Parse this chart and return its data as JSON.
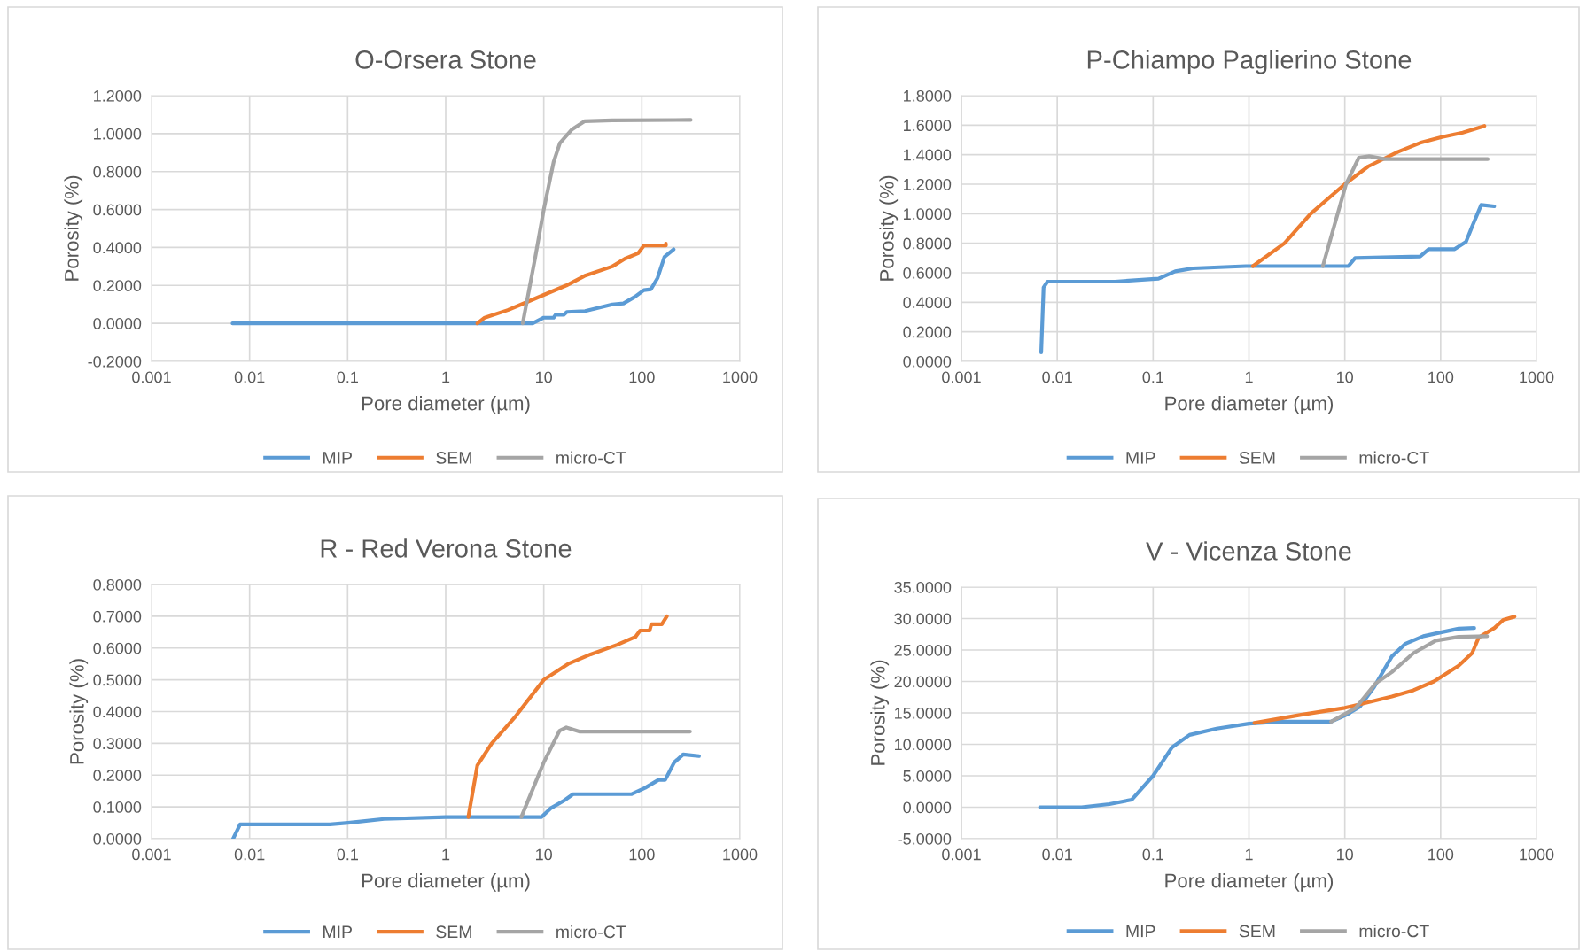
{
  "chart_data": [
    {
      "type": "line",
      "title": "O-Orsera Stone",
      "xlabel": "Pore diameter (µm)",
      "ylabel": "Porosity (%)",
      "log": "x",
      "grid": true,
      "legend": "bottom",
      "line_style": "solid",
      "marker": "none",
      "xlim": [
        0.001,
        1000
      ],
      "xticks": [
        0.001,
        0.01,
        0.1,
        1,
        10,
        100,
        1000
      ],
      "ylim": [
        -0.2,
        1.2
      ],
      "yticks": [
        {
          "value": -0.2,
          "label": "-0.2000"
        },
        {
          "value": 0,
          "label": "0.0000"
        },
        {
          "value": 0.2,
          "label": "0.2000"
        },
        {
          "value": 0.4,
          "label": "0.4000"
        },
        {
          "value": 0.6,
          "label": "0.6000"
        },
        {
          "value": 0.8,
          "label": "0.8000"
        },
        {
          "value": 1.0,
          "label": "1.0000"
        },
        {
          "value": 1.2,
          "label": "1.2000"
        }
      ],
      "series": [
        {
          "name": "MIP",
          "color": "#5b9bd5",
          "x": [
            0.0067,
            1,
            7.7,
            10,
            12.6,
            13.2,
            16,
            17.2,
            26.4,
            50,
            65,
            85,
            105,
            124,
            145,
            170,
            211
          ],
          "values": [
            0,
            0,
            0,
            0.03,
            0.03,
            0.045,
            0.045,
            0.06,
            0.065,
            0.1,
            0.105,
            0.14,
            0.175,
            0.18,
            0.24,
            0.35,
            0.39
          ]
        },
        {
          "name": "SEM",
          "color": "#ed7d31",
          "x": [
            2.1,
            2.5,
            4.3,
            5.9,
            10,
            17,
            26,
            50,
            67,
            92,
            105,
            176,
            176
          ],
          "values": [
            0,
            0.03,
            0.07,
            0.1,
            0.15,
            0.2,
            0.25,
            0.3,
            0.34,
            0.37,
            0.41,
            0.41,
            0.42
          ]
        },
        {
          "name": "micro-CT",
          "color": "#a5a5a5",
          "x": [
            6.1,
            8.2,
            10,
            12.6,
            14.6,
            19.2,
            26,
            50,
            315
          ],
          "values": [
            0,
            0.35,
            0.6,
            0.85,
            0.95,
            1.02,
            1.065,
            1.07,
            1.072
          ]
        }
      ]
    },
    {
      "type": "line",
      "title": "P-Chiampo Paglierino Stone",
      "xlabel": "Pore diameter (µm)",
      "ylabel": "Porosity (%)",
      "log": "x",
      "grid": true,
      "legend": "bottom",
      "line_style": "solid",
      "marker": "none",
      "xlim": [
        0.001,
        1000
      ],
      "xticks": [
        0.001,
        0.01,
        0.1,
        1,
        10,
        100,
        1000
      ],
      "ylim": [
        0,
        1.8
      ],
      "yticks": [
        {
          "value": 0,
          "label": "0.0000"
        },
        {
          "value": 0.2,
          "label": "0.2000"
        },
        {
          "value": 0.4,
          "label": "0.4000"
        },
        {
          "value": 0.6,
          "label": "0.6000"
        },
        {
          "value": 0.8,
          "label": "0.8000"
        },
        {
          "value": 1.0,
          "label": "1.0000"
        },
        {
          "value": 1.2,
          "label": "1.2000"
        },
        {
          "value": 1.4,
          "label": "1.4000"
        },
        {
          "value": 1.6,
          "label": "1.6000"
        },
        {
          "value": 1.8,
          "label": "1.8000"
        }
      ],
      "series": [
        {
          "name": "MIP",
          "color": "#5b9bd5",
          "x": [
            0.0068,
            0.0072,
            0.0079,
            0.04,
            0.114,
            0.17,
            0.26,
            0.93,
            10.9,
            12.8,
            61,
            75,
            140,
            184,
            215,
            265,
            362
          ],
          "values": [
            0.06,
            0.5,
            0.54,
            0.54,
            0.56,
            0.61,
            0.63,
            0.645,
            0.645,
            0.7,
            0.71,
            0.76,
            0.76,
            0.81,
            0.92,
            1.06,
            1.05
          ]
        },
        {
          "name": "SEM",
          "color": "#ed7d31",
          "x": [
            1.1,
            2.35,
            4.4,
            10,
            17.5,
            36,
            61,
            103,
            170,
            286
          ],
          "values": [
            0.645,
            0.8,
            1.0,
            1.2,
            1.32,
            1.42,
            1.48,
            1.52,
            1.55,
            1.595
          ]
        },
        {
          "name": "micro-CT",
          "color": "#a5a5a5",
          "x": [
            5.9,
            10.3,
            14,
            18,
            26,
            310
          ],
          "values": [
            0.645,
            1.2,
            1.38,
            1.39,
            1.37,
            1.37
          ]
        }
      ]
    },
    {
      "type": "line",
      "title": "R - Red Verona Stone",
      "xlabel": "Pore diameter (µm)",
      "ylabel": "Porosity (%)",
      "log": "x",
      "grid": true,
      "legend": "bottom",
      "line_style": "solid",
      "marker": "none",
      "xlim": [
        0.001,
        1000
      ],
      "xticks": [
        0.001,
        0.01,
        0.1,
        1,
        10,
        100,
        1000
      ],
      "ylim": [
        0,
        0.8
      ],
      "yticks": [
        {
          "value": 0,
          "label": "0.0000"
        },
        {
          "value": 0.1,
          "label": "0.1000"
        },
        {
          "value": 0.2,
          "label": "0.2000"
        },
        {
          "value": 0.3,
          "label": "0.3000"
        },
        {
          "value": 0.4,
          "label": "0.4000"
        },
        {
          "value": 0.5,
          "label": "0.5000"
        },
        {
          "value": 0.6,
          "label": "0.6000"
        },
        {
          "value": 0.7,
          "label": "0.7000"
        },
        {
          "value": 0.8,
          "label": "0.8000"
        }
      ],
      "series": [
        {
          "name": "MIP",
          "color": "#5b9bd5",
          "x": [
            0.0068,
            0.008,
            0.066,
            0.101,
            0.235,
            1,
            9.5,
            11.7,
            16.1,
            19.9,
            78,
            108,
            148,
            173,
            214,
            264,
            383
          ],
          "values": [
            0,
            0.045,
            0.045,
            0.05,
            0.062,
            0.068,
            0.068,
            0.095,
            0.12,
            0.14,
            0.14,
            0.16,
            0.185,
            0.185,
            0.24,
            0.265,
            0.26
          ]
        },
        {
          "name": "SEM",
          "color": "#ed7d31",
          "x": [
            1.7,
            2.1,
            2.95,
            5,
            10,
            17.7,
            30,
            56,
            86,
            96,
            120,
            125,
            160,
            180
          ],
          "values": [
            0.068,
            0.23,
            0.3,
            0.38,
            0.5,
            0.55,
            0.58,
            0.61,
            0.635,
            0.655,
            0.655,
            0.675,
            0.675,
            0.7
          ]
        },
        {
          "name": "micro-CT",
          "color": "#a5a5a5",
          "x": [
            5.9,
            10,
            14.5,
            17,
            23,
            310
          ],
          "values": [
            0.068,
            0.24,
            0.34,
            0.35,
            0.337,
            0.337
          ]
        }
      ]
    },
    {
      "type": "line",
      "title": "V - Vicenza Stone",
      "xlabel": "Pore diameter (µm)",
      "ylabel": "Porosity (%)",
      "log": "x",
      "grid": true,
      "legend": "bottom",
      "line_style": "solid",
      "marker": "none",
      "xlim": [
        0.001,
        1000
      ],
      "xticks": [
        0.001,
        0.01,
        0.1,
        1,
        10,
        100,
        1000
      ],
      "ylim": [
        -5,
        35
      ],
      "yticks": [
        {
          "value": -5,
          "label": "-5.0000"
        },
        {
          "value": 0,
          "label": "0.0000"
        },
        {
          "value": 5,
          "label": "5.0000"
        },
        {
          "value": 10,
          "label": "10.0000"
        },
        {
          "value": 15,
          "label": "15.0000"
        },
        {
          "value": 20,
          "label": "20.0000"
        },
        {
          "value": 25,
          "label": "25.0000"
        },
        {
          "value": 30,
          "label": "30.0000"
        },
        {
          "value": 35,
          "label": "35.0000"
        }
      ],
      "series": [
        {
          "name": "MIP",
          "color": "#5b9bd5",
          "x": [
            0.0066,
            0.018,
            0.035,
            0.06,
            0.1,
            0.157,
            0.24,
            0.46,
            1,
            2.1,
            7.2,
            10.4,
            14.4,
            20,
            31,
            43,
            66,
            100,
            154,
            224
          ],
          "values": [
            0,
            0,
            0.5,
            1.2,
            5,
            9.5,
            11.5,
            12.5,
            13.3,
            13.6,
            13.6,
            14.7,
            16,
            19,
            24,
            26,
            27.2,
            27.8,
            28.4,
            28.5
          ]
        },
        {
          "name": "SEM",
          "color": "#ed7d31",
          "x": [
            1.14,
            3.5,
            10,
            31,
            52,
            85,
            154,
            213,
            250,
            364,
            450,
            590
          ],
          "values": [
            13.4,
            14.7,
            15.8,
            17.6,
            18.6,
            20,
            22.5,
            24.5,
            27,
            28.5,
            29.8,
            30.3
          ]
        },
        {
          "name": "micro-CT",
          "color": "#a5a5a5",
          "x": [
            7.2,
            13,
            21,
            31,
            52,
            89,
            154,
            305
          ],
          "values": [
            13.6,
            15.8,
            19.7,
            21.5,
            24.5,
            26.5,
            27.1,
            27.2
          ]
        }
      ]
    }
  ]
}
